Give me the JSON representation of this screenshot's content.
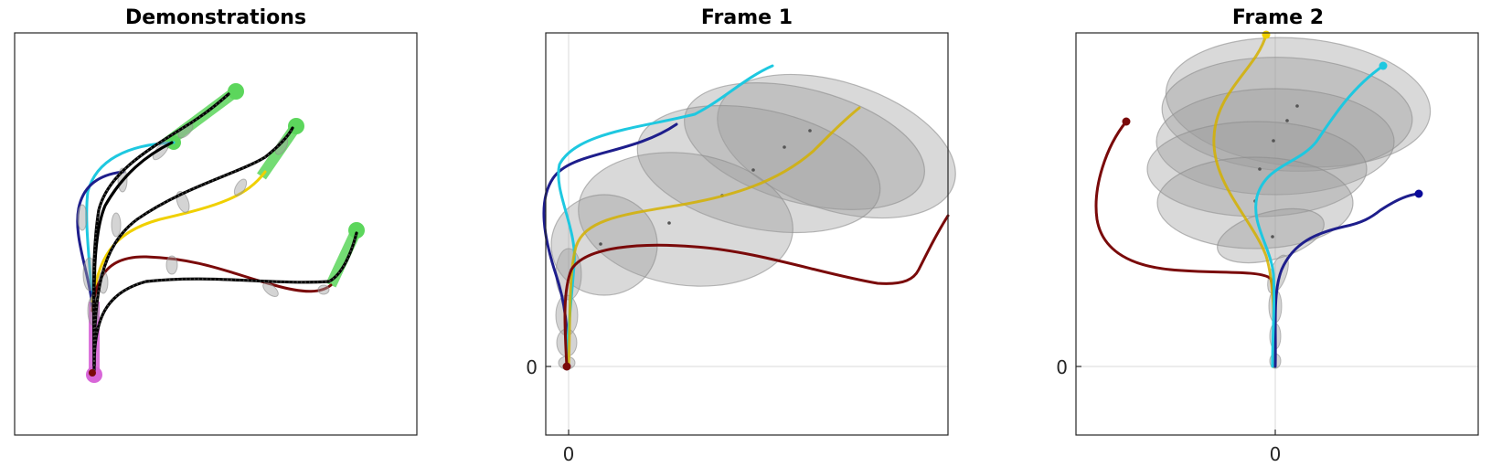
{
  "panels": [
    {
      "title": "Demonstrations",
      "xticks": [],
      "yticks": []
    },
    {
      "title": "Frame 1",
      "xticks": [
        "0"
      ],
      "yticks": [
        "0"
      ]
    },
    {
      "title": "Frame 2",
      "xticks": [
        "0"
      ],
      "yticks": [
        "0"
      ]
    }
  ],
  "colors": {
    "cyan": "#1ec8e0",
    "navy": "#1e1e8c",
    "yellow": "#f0d000",
    "darkred": "#7a0a0a",
    "frame_green": "#5cd65c",
    "start_magenta": "#d866d8",
    "model_black": "#000000",
    "ellipse_gray": "#9a9a9a"
  }
}
